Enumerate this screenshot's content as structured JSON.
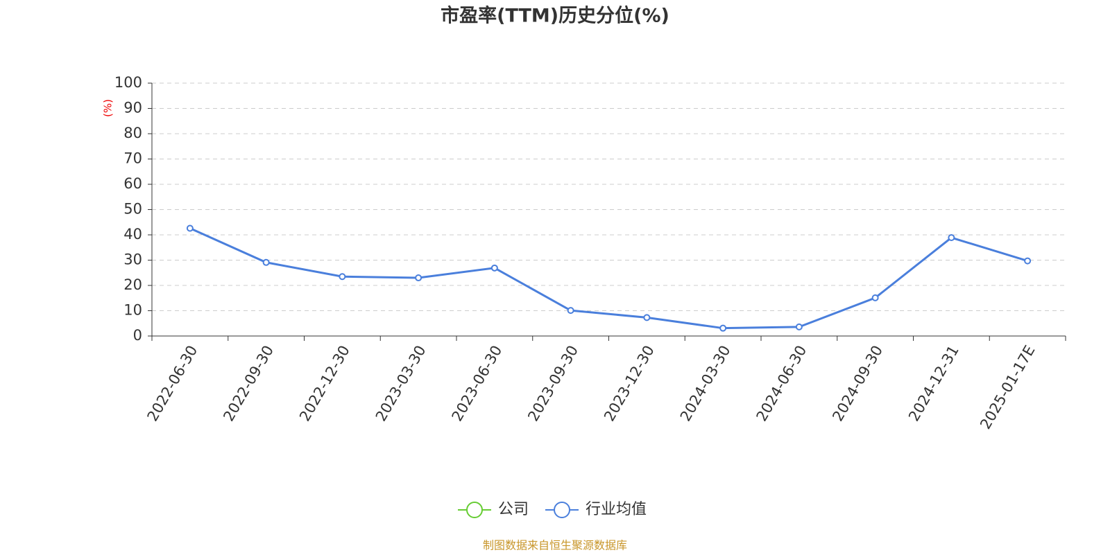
{
  "chart_data": {
    "type": "line",
    "title": "市盈率(TTM)历史分位(%)",
    "y_label": "(%)",
    "source": "制图数据来自恒生聚源数据库",
    "categories": [
      "2022-06-30",
      "2022-09-30",
      "2022-12-30",
      "2023-03-30",
      "2023-06-30",
      "2023-09-30",
      "2023-12-30",
      "2024-03-30",
      "2024-06-30",
      "2024-09-30",
      "2024-12-31",
      "2025-01-17E"
    ],
    "series": [
      {
        "name": "公司",
        "color": "#66cc33",
        "values": [
          null,
          null,
          null,
          null,
          null,
          null,
          null,
          null,
          null,
          null,
          null,
          null
        ]
      },
      {
        "name": "行业均值",
        "color": "#4a7fdc",
        "values": [
          42.6,
          29.1,
          23.5,
          23.0,
          26.9,
          10.1,
          7.3,
          3.1,
          3.6,
          15.1,
          38.9,
          29.7
        ]
      }
    ],
    "ylim": [
      0,
      100
    ],
    "yticks": [
      0,
      10,
      20,
      30,
      40,
      50,
      60,
      70,
      80,
      90,
      100
    ],
    "grid": true,
    "legend": "bottom"
  }
}
